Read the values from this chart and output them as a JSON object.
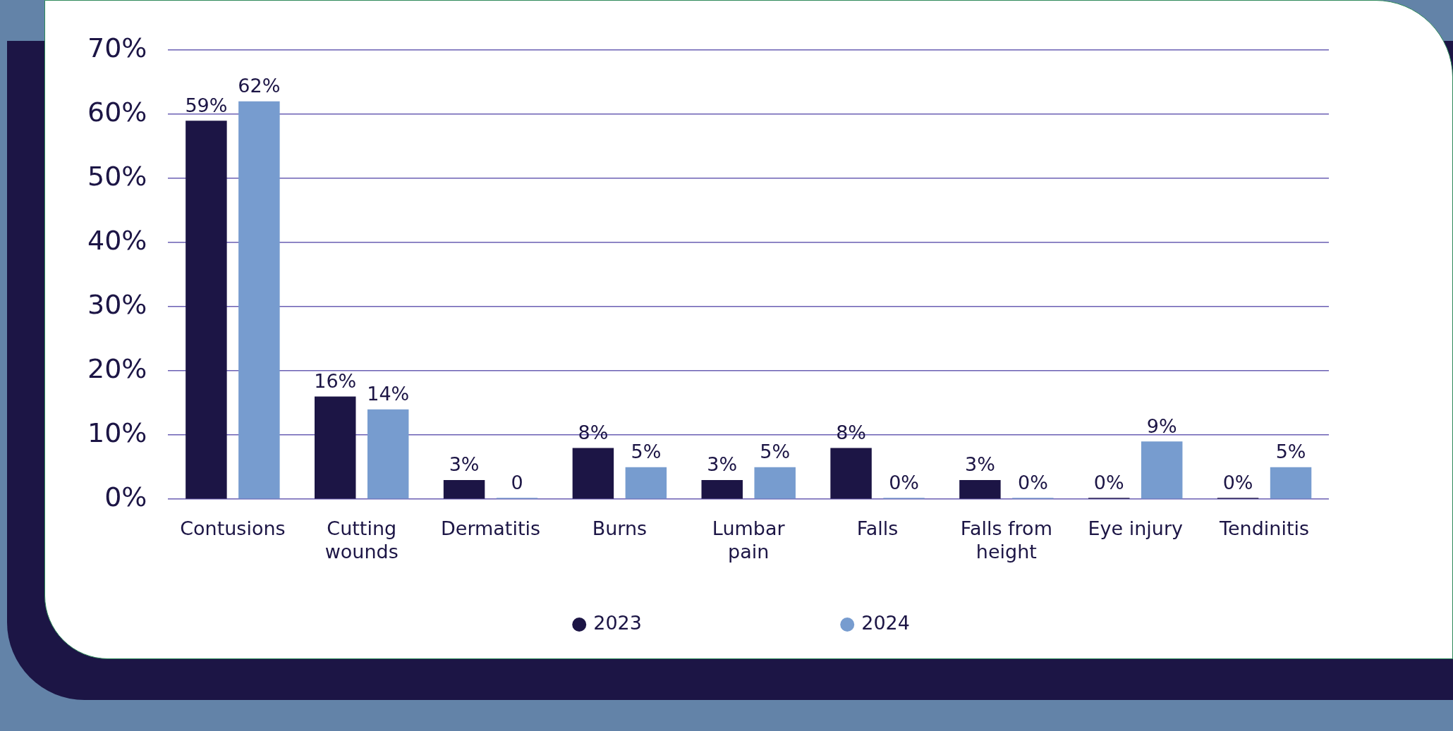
{
  "chart_data": {
    "type": "bar",
    "categories": [
      "Contusions",
      "Cutting wounds",
      "Dermatitis",
      "Burns",
      "Lumbar pain",
      "Falls",
      "Falls from height",
      "Eye injury",
      "Tendinitis"
    ],
    "series": [
      {
        "name": "2023",
        "color": "#1c1545",
        "values": [
          59,
          16,
          3,
          8,
          3,
          8,
          3,
          0,
          0
        ],
        "value_labels": [
          "59%",
          "16%",
          "3%",
          "8%",
          "3%",
          "8%",
          "3%",
          "0%",
          "0%"
        ]
      },
      {
        "name": "2024",
        "color": "#779ccf",
        "values": [
          62,
          14,
          0,
          5,
          5,
          0,
          0,
          9,
          5
        ],
        "value_labels": [
          "62%",
          "14%",
          "0",
          "5%",
          "5%",
          "0%",
          "0%",
          "9%",
          "5%"
        ]
      }
    ],
    "ylim": [
      0,
      70
    ],
    "yticks": [
      {
        "value": 0,
        "label": "0%"
      },
      {
        "value": 10,
        "label": "10%"
      },
      {
        "value": 20,
        "label": "20%"
      },
      {
        "value": 30,
        "label": "30%"
      },
      {
        "value": 40,
        "label": "40%"
      },
      {
        "value": 50,
        "label": "50%"
      },
      {
        "value": 60,
        "label": "60%"
      },
      {
        "value": 70,
        "label": "70%"
      }
    ],
    "grid": "y",
    "legend": "bottom",
    "marker": "circle"
  }
}
